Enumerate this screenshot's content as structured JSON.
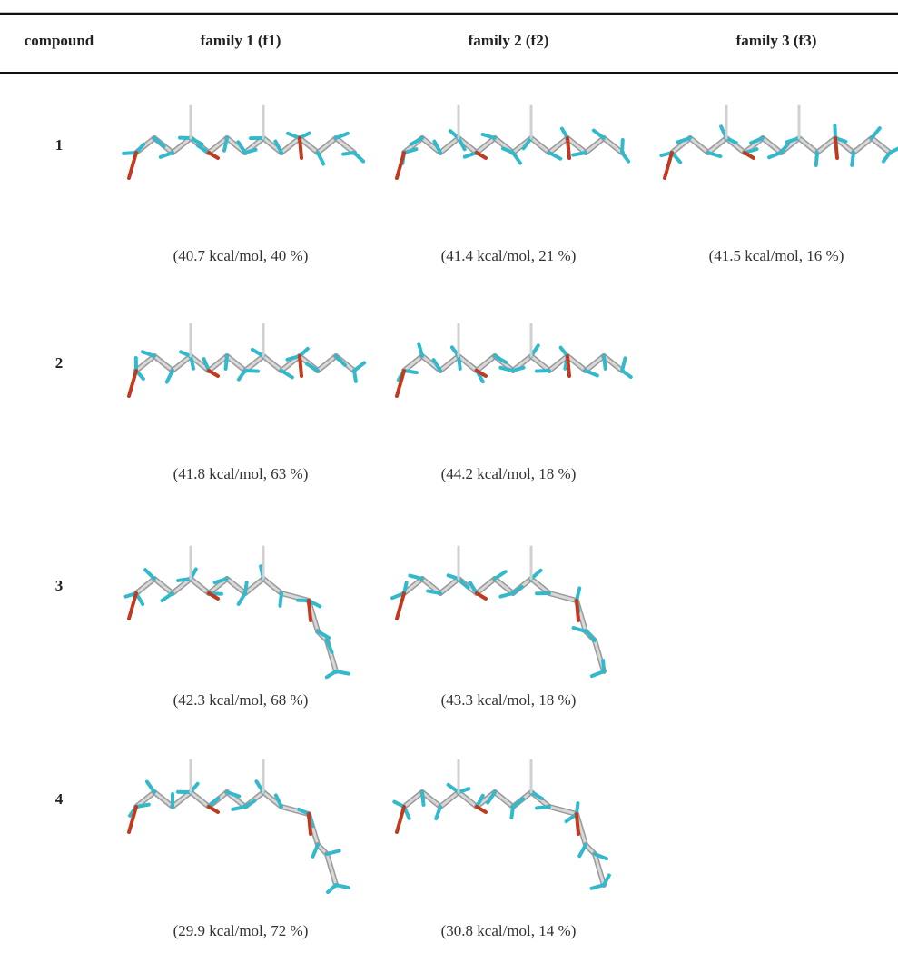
{
  "table": {
    "header": [
      "compound",
      "family 1 (f1)",
      "family 2 (f2)",
      "family 3 (f3)"
    ],
    "rows": [
      {
        "compound": "1",
        "conformers": [
          "(40.7 kcal/mol, 40 %)",
          "(41.4 kcal/mol, 21 %)",
          "(41.5 kcal/mol, 16 %)"
        ]
      },
      {
        "compound": "2",
        "conformers": [
          "(41.8 kcal/mol, 63 %)",
          "(44.2 kcal/mol, 18 %)"
        ]
      },
      {
        "compound": "3",
        "conformers": [
          "(42.3 kcal/mol, 68 %)",
          "(43.3 kcal/mol, 18 %)"
        ]
      },
      {
        "compound": "4",
        "conformers": [
          "(29.9 kcal/mol, 72 %)",
          "(30.8 kcal/mol, 14 %)"
        ]
      }
    ]
  }
}
